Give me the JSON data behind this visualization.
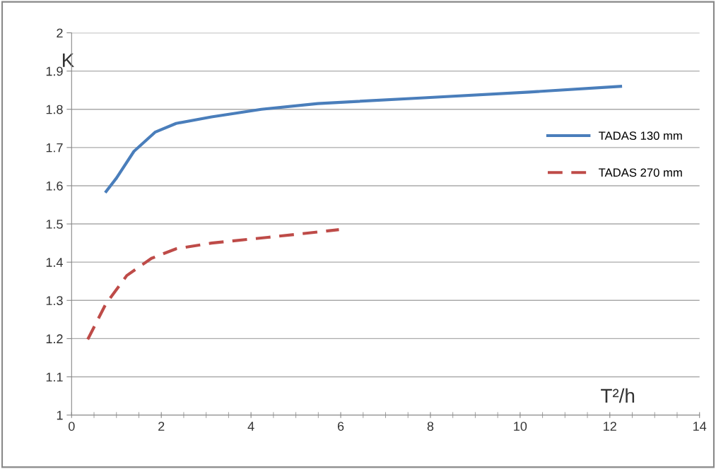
{
  "chart_data": {
    "type": "line",
    "xlabel": "T²/h",
    "ylabel": "K",
    "series": [
      {
        "name": "TADAS 130 mm",
        "color": "#4a7ebb",
        "line_style": "solid",
        "x": [
          0.77,
          1.0,
          1.39,
          1.86,
          2.33,
          3.12,
          4.23,
          5.49,
          7.85,
          10.2,
          12.24
        ],
        "values": [
          1.585,
          1.62,
          1.69,
          1.74,
          1.763,
          1.78,
          1.8,
          1.815,
          1.83,
          1.845,
          1.86
        ]
      },
      {
        "name": "TADAS 270 mm",
        "color": "#be4b48",
        "line_style": "dashed",
        "x": [
          0.36,
          0.76,
          1.23,
          1.78,
          2.33,
          3.12,
          4.38,
          5.96
        ],
        "values": [
          1.198,
          1.29,
          1.365,
          1.41,
          1.435,
          1.45,
          1.465,
          1.485
        ]
      }
    ],
    "xlim": [
      0,
      14
    ],
    "xticks": [
      0,
      2,
      4,
      6,
      8,
      10,
      12,
      14
    ],
    "ylim": [
      1,
      2
    ],
    "yticks": [
      1,
      1.1,
      1.2,
      1.3,
      1.4,
      1.5,
      1.6,
      1.7,
      1.8,
      1.9,
      2
    ],
    "grid": "y",
    "legend": "right",
    "marker": "none"
  }
}
